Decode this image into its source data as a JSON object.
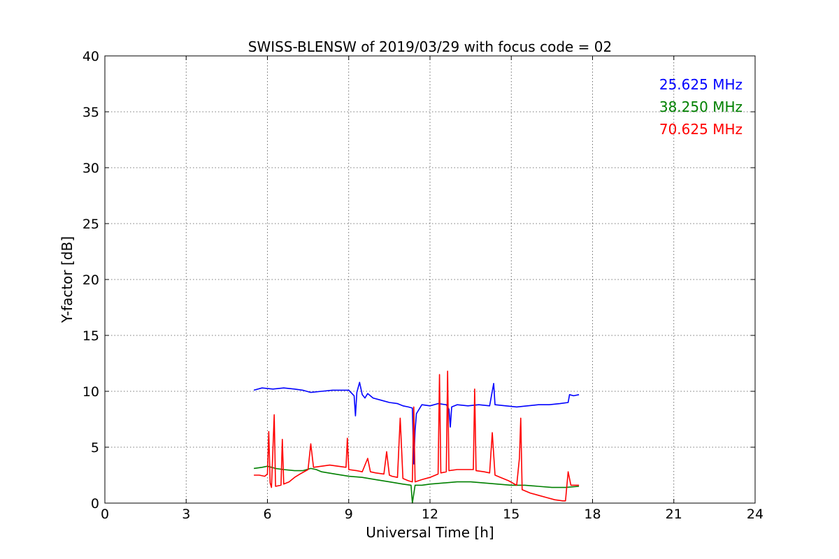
{
  "chart_data": {
    "type": "line",
    "title": "SWISS-BLENSW of 2019/03/29 with focus code = 02",
    "xlabel": "Universal Time [h]",
    "ylabel": "Y-factor [dB]",
    "xlim": [
      0,
      24
    ],
    "ylim": [
      0,
      40
    ],
    "xticks": [
      0,
      3,
      6,
      9,
      12,
      15,
      18,
      21,
      24
    ],
    "yticks": [
      0,
      5,
      10,
      15,
      20,
      25,
      30,
      35,
      40
    ],
    "grid": true,
    "legend_position": "top-right",
    "series": [
      {
        "name": "25.625 MHz",
        "color": "#0000ff",
        "points": [
          [
            5.5,
            10.1
          ],
          [
            5.8,
            10.3
          ],
          [
            6.2,
            10.2
          ],
          [
            6.6,
            10.3
          ],
          [
            7.0,
            10.2
          ],
          [
            7.3,
            10.1
          ],
          [
            7.6,
            9.9
          ],
          [
            8.0,
            10.0
          ],
          [
            8.4,
            10.1
          ],
          [
            8.8,
            10.1
          ],
          [
            9.0,
            10.1
          ],
          [
            9.2,
            9.6
          ],
          [
            9.25,
            7.8
          ],
          [
            9.3,
            9.9
          ],
          [
            9.4,
            10.8
          ],
          [
            9.5,
            9.7
          ],
          [
            9.6,
            9.4
          ],
          [
            9.7,
            9.8
          ],
          [
            9.9,
            9.4
          ],
          [
            10.2,
            9.2
          ],
          [
            10.5,
            9.0
          ],
          [
            10.8,
            8.9
          ],
          [
            11.0,
            8.7
          ],
          [
            11.2,
            8.6
          ],
          [
            11.35,
            8.5
          ],
          [
            11.4,
            3.5
          ],
          [
            11.45,
            6.5
          ],
          [
            11.5,
            8.0
          ],
          [
            11.7,
            8.8
          ],
          [
            12.0,
            8.7
          ],
          [
            12.3,
            8.9
          ],
          [
            12.6,
            8.8
          ],
          [
            12.7,
            8.4
          ],
          [
            12.75,
            6.8
          ],
          [
            12.8,
            8.6
          ],
          [
            13.0,
            8.8
          ],
          [
            13.4,
            8.7
          ],
          [
            13.8,
            8.8
          ],
          [
            14.2,
            8.7
          ],
          [
            14.35,
            10.7
          ],
          [
            14.4,
            8.8
          ],
          [
            14.8,
            8.7
          ],
          [
            15.2,
            8.6
          ],
          [
            15.6,
            8.7
          ],
          [
            16.0,
            8.8
          ],
          [
            16.4,
            8.8
          ],
          [
            16.8,
            8.9
          ],
          [
            17.1,
            9.0
          ],
          [
            17.15,
            9.7
          ],
          [
            17.3,
            9.6
          ],
          [
            17.5,
            9.7
          ]
        ]
      },
      {
        "name": "38.250 MHz",
        "color": "#008000",
        "points": [
          [
            5.5,
            3.1
          ],
          [
            5.8,
            3.2
          ],
          [
            6.0,
            3.3
          ],
          [
            6.3,
            3.1
          ],
          [
            6.6,
            3.0
          ],
          [
            7.0,
            2.9
          ],
          [
            7.3,
            2.9
          ],
          [
            7.6,
            3.1
          ],
          [
            7.8,
            3.0
          ],
          [
            8.0,
            2.8
          ],
          [
            8.5,
            2.6
          ],
          [
            9.0,
            2.4
          ],
          [
            9.5,
            2.3
          ],
          [
            10.0,
            2.1
          ],
          [
            10.5,
            1.9
          ],
          [
            11.0,
            1.7
          ],
          [
            11.3,
            1.6
          ],
          [
            11.35,
            0.0
          ],
          [
            11.45,
            1.6
          ],
          [
            11.7,
            1.6
          ],
          [
            12.0,
            1.7
          ],
          [
            12.5,
            1.8
          ],
          [
            13.0,
            1.9
          ],
          [
            13.5,
            1.9
          ],
          [
            14.0,
            1.8
          ],
          [
            14.5,
            1.7
          ],
          [
            15.0,
            1.6
          ],
          [
            15.5,
            1.6
          ],
          [
            16.0,
            1.5
          ],
          [
            16.5,
            1.4
          ],
          [
            17.0,
            1.4
          ],
          [
            17.5,
            1.5
          ]
        ]
      },
      {
        "name": "70.625 MHz",
        "color": "#ff0000",
        "points": [
          [
            5.5,
            2.5
          ],
          [
            5.7,
            2.5
          ],
          [
            5.9,
            2.4
          ],
          [
            6.0,
            2.6
          ],
          [
            6.05,
            6.4
          ],
          [
            6.1,
            1.8
          ],
          [
            6.15,
            1.4
          ],
          [
            6.25,
            7.9
          ],
          [
            6.3,
            1.5
          ],
          [
            6.5,
            1.6
          ],
          [
            6.55,
            5.7
          ],
          [
            6.6,
            1.7
          ],
          [
            6.8,
            1.9
          ],
          [
            7.0,
            2.3
          ],
          [
            7.2,
            2.6
          ],
          [
            7.5,
            3.0
          ],
          [
            7.6,
            5.3
          ],
          [
            7.7,
            3.2
          ],
          [
            8.0,
            3.3
          ],
          [
            8.3,
            3.4
          ],
          [
            8.6,
            3.3
          ],
          [
            8.9,
            3.2
          ],
          [
            8.95,
            5.8
          ],
          [
            9.0,
            3.0
          ],
          [
            9.3,
            2.9
          ],
          [
            9.5,
            2.8
          ],
          [
            9.7,
            4.0
          ],
          [
            9.8,
            2.8
          ],
          [
            10.0,
            2.7
          ],
          [
            10.3,
            2.6
          ],
          [
            10.4,
            4.6
          ],
          [
            10.5,
            2.5
          ],
          [
            10.6,
            2.4
          ],
          [
            10.8,
            2.3
          ],
          [
            10.9,
            7.6
          ],
          [
            11.0,
            2.2
          ],
          [
            11.2,
            2.0
          ],
          [
            11.35,
            1.9
          ],
          [
            11.4,
            8.6
          ],
          [
            11.45,
            1.9
          ],
          [
            11.7,
            2.1
          ],
          [
            12.0,
            2.3
          ],
          [
            12.3,
            2.6
          ],
          [
            12.35,
            11.5
          ],
          [
            12.4,
            2.7
          ],
          [
            12.6,
            2.8
          ],
          [
            12.65,
            11.8
          ],
          [
            12.7,
            2.9
          ],
          [
            13.0,
            3.0
          ],
          [
            13.3,
            3.0
          ],
          [
            13.6,
            3.0
          ],
          [
            13.65,
            10.2
          ],
          [
            13.7,
            2.9
          ],
          [
            14.0,
            2.8
          ],
          [
            14.2,
            2.7
          ],
          [
            14.3,
            6.3
          ],
          [
            14.4,
            2.5
          ],
          [
            14.6,
            2.3
          ],
          [
            14.9,
            2.0
          ],
          [
            15.2,
            1.6
          ],
          [
            15.3,
            4.0
          ],
          [
            15.35,
            7.6
          ],
          [
            15.4,
            1.2
          ],
          [
            15.7,
            0.9
          ],
          [
            16.0,
            0.7
          ],
          [
            16.3,
            0.5
          ],
          [
            16.6,
            0.3
          ],
          [
            16.9,
            0.2
          ],
          [
            17.0,
            0.2
          ],
          [
            17.1,
            2.8
          ],
          [
            17.2,
            1.6
          ],
          [
            17.5,
            1.6
          ]
        ]
      }
    ]
  }
}
